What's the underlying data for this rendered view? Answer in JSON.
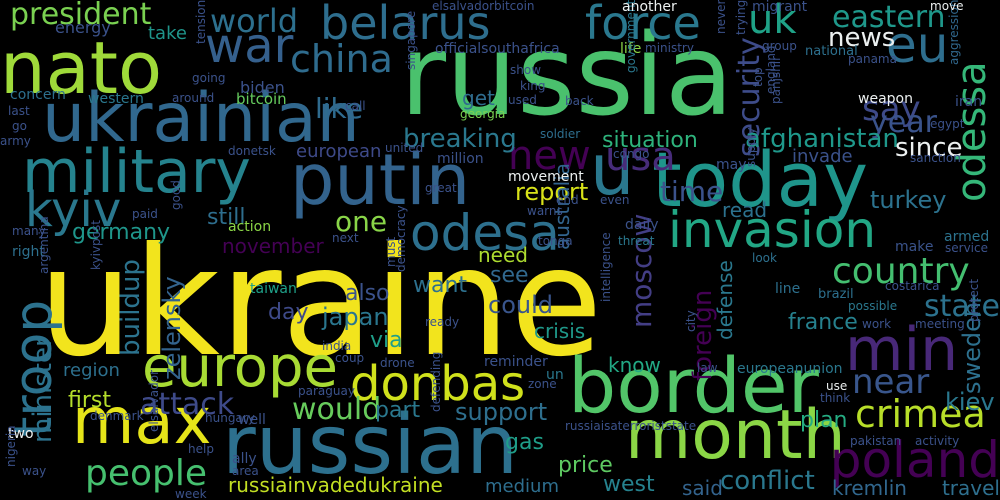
{
  "wordcloud": {
    "background": "#000000",
    "palette": {
      "yellow": "#f0e31c",
      "lime": "#a3da37",
      "green": "#5ec962",
      "teal_green": "#35b779",
      "teal": "#21918c",
      "blue": "#2c728e",
      "indigo": "#3b528b",
      "purple": "#472d7b",
      "dark": "#440154"
    },
    "words": [
      {
        "text": "ukraine",
        "color": "#f2e41d"
      },
      {
        "text": "russia",
        "color": "#4ac16d"
      },
      {
        "text": "border",
        "color": "#52c569"
      },
      {
        "text": "today",
        "color": "#1f958b"
      },
      {
        "text": "russian",
        "color": "#2d708e"
      },
      {
        "text": "nato",
        "color": "#9fda3a"
      },
      {
        "text": "ukrainian",
        "color": "#31688e"
      },
      {
        "text": "putin",
        "color": "#33638d"
      },
      {
        "text": "max",
        "color": "#e5e419"
      },
      {
        "text": "month",
        "color": "#8bd646"
      },
      {
        "text": "min",
        "color": "#482878"
      },
      {
        "text": "u",
        "color": "#2a788e"
      },
      {
        "text": "military",
        "color": "#25838e"
      },
      {
        "text": "europe",
        "color": "#a8db34"
      },
      {
        "text": "belarus",
        "color": "#2e6e8e"
      },
      {
        "text": "force",
        "color": "#2a788e"
      },
      {
        "text": "war",
        "color": "#35608d"
      },
      {
        "text": "odesa",
        "color": "#2d708e"
      },
      {
        "text": "invasion",
        "color": "#22a785"
      },
      {
        "text": "donbas",
        "color": "#d0e11c"
      },
      {
        "text": "troop",
        "color": "#2c728e"
      },
      {
        "text": "poland",
        "color": "#440154"
      },
      {
        "text": "kyiv",
        "color": "#2a788e"
      },
      {
        "text": "crimea",
        "color": "#b8de29"
      },
      {
        "text": "people",
        "color": "#46c06f"
      },
      {
        "text": "eu",
        "color": "#2e6e8e"
      },
      {
        "text": "odessa",
        "color": "#35b779"
      },
      {
        "text": "china",
        "color": "#2f6c8e"
      },
      {
        "text": "uk",
        "color": "#1fa287"
      },
      {
        "text": "country",
        "color": "#44bf70"
      },
      {
        "text": "near",
        "color": "#39568c"
      },
      {
        "text": "usa",
        "color": "#472c7a"
      },
      {
        "text": "new",
        "color": "#440154"
      },
      {
        "text": "state",
        "color": "#2c728e"
      },
      {
        "text": "president",
        "color": "#7ad151"
      },
      {
        "text": "world",
        "color": "#2d708e"
      },
      {
        "text": "eastern",
        "color": "#1f988b"
      },
      {
        "text": "like",
        "color": "#2f6b8e"
      },
      {
        "text": "say",
        "color": "#3e4a89"
      },
      {
        "text": "year",
        "color": "#3a538b"
      },
      {
        "text": "security",
        "color": "#3e4c8a"
      },
      {
        "text": "news",
        "color": "#ecf0f0"
      },
      {
        "text": "would",
        "color": "#67cc5c"
      },
      {
        "text": "attack",
        "color": "#3e4a89"
      },
      {
        "text": "minister",
        "color": "#2c738e"
      },
      {
        "text": "zelensky",
        "color": "#33638d"
      },
      {
        "text": "buildup",
        "color": "#2c738e"
      },
      {
        "text": "one",
        "color": "#89d548"
      },
      {
        "text": "time",
        "color": "#3b528b"
      },
      {
        "text": "breaking",
        "color": "#2a788e"
      },
      {
        "text": "afghanistan",
        "color": "#1f988b"
      },
      {
        "text": "since",
        "color": "#ecf0f0"
      },
      {
        "text": "situation",
        "color": "#2eb37c"
      },
      {
        "text": "report",
        "color": "#d8e219"
      },
      {
        "text": "moscow",
        "color": "#433e85"
      },
      {
        "text": "foreign",
        "color": "#440154"
      },
      {
        "text": "conflict",
        "color": "#2a788e"
      },
      {
        "text": "support",
        "color": "#2e6f8e"
      },
      {
        "text": "kremlin",
        "color": "#31678e"
      },
      {
        "text": "sweden",
        "color": "#2d708e"
      },
      {
        "text": "kiev",
        "color": "#2a788e"
      },
      {
        "text": "turkey",
        "color": "#2c728e"
      },
      {
        "text": "france",
        "color": "#26818e"
      },
      {
        "text": "japan",
        "color": "#2a768e"
      },
      {
        "text": "day",
        "color": "#3e4a89"
      },
      {
        "text": "could",
        "color": "#39558c"
      },
      {
        "text": "see",
        "color": "#31688e"
      },
      {
        "text": "also",
        "color": "#3b528b"
      },
      {
        "text": "want",
        "color": "#2d708e"
      },
      {
        "text": "via",
        "color": "#1f9e89"
      },
      {
        "text": "still",
        "color": "#2e6e8e"
      },
      {
        "text": "germany",
        "color": "#1f968b"
      },
      {
        "text": "november",
        "color": "#440154"
      },
      {
        "text": "first",
        "color": "#b5de2b"
      },
      {
        "text": "part",
        "color": "#2a788e"
      },
      {
        "text": "plan",
        "color": "#25ac82"
      },
      {
        "text": "gas",
        "color": "#1f9e89"
      },
      {
        "text": "price",
        "color": "#5ec962"
      },
      {
        "text": "west",
        "color": "#26828e"
      },
      {
        "text": "said",
        "color": "#33638d"
      },
      {
        "text": "russiainvadedukraine",
        "color": "#c2df23"
      },
      {
        "text": "australia",
        "color": "#32648e"
      },
      {
        "text": "need",
        "color": "#addc30"
      },
      {
        "text": "crisis",
        "color": "#1f998a"
      },
      {
        "text": "defense",
        "color": "#2a788e"
      },
      {
        "text": "travel",
        "color": "#2e6f8e"
      },
      {
        "text": "read",
        "color": "#2c718e"
      },
      {
        "text": "invade",
        "color": "#3b528b"
      },
      {
        "text": "get",
        "color": "#2f6c8e"
      },
      {
        "text": "know",
        "color": "#22a884"
      },
      {
        "text": "medium",
        "color": "#2e6e8e"
      },
      {
        "text": "region",
        "color": "#2d708e"
      },
      {
        "text": "european",
        "color": "#3e4a89"
      },
      {
        "text": "take",
        "color": "#1f958b"
      },
      {
        "text": "energy",
        "color": "#3b528b"
      },
      {
        "text": "biden",
        "color": "#3b528b"
      },
      {
        "text": "bitcoin",
        "color": "#65cb5e"
      },
      {
        "text": "western",
        "color": "#2a788e"
      },
      {
        "text": "concern",
        "color": "#2d708e"
      },
      {
        "text": "last",
        "color": "#3b528b"
      },
      {
        "text": "action",
        "color": "#8bd646"
      },
      {
        "text": "taiwan",
        "color": "#1fa088"
      },
      {
        "text": "armed",
        "color": "#2c738e"
      },
      {
        "text": "make",
        "color": "#3a538b"
      },
      {
        "text": "service",
        "color": "#3b528b"
      },
      {
        "text": "weapon",
        "color": "#ecf0f0"
      },
      {
        "text": "iran",
        "color": "#3b528b"
      },
      {
        "text": "aggression",
        "color": "#31688e"
      },
      {
        "text": "national",
        "color": "#2d708e"
      },
      {
        "text": "group",
        "color": "#3b528b"
      },
      {
        "text": "life",
        "color": "#8bd646"
      },
      {
        "text": "ministry",
        "color": "#3b528b"
      },
      {
        "text": "government",
        "color": "#2a788e"
      },
      {
        "text": "back",
        "color": "#3b528b"
      },
      {
        "text": "soldier",
        "color": "#2e6e8e"
      },
      {
        "text": "georgia",
        "color": "#7ad151"
      },
      {
        "text": "officialsouthafrica",
        "color": "#3b528b"
      },
      {
        "text": "elsalvadorbitcoin",
        "color": "#3b528b"
      },
      {
        "text": "another",
        "color": "#ecf0f0"
      },
      {
        "text": "migrant",
        "color": "#3b528b"
      },
      {
        "text": "move",
        "color": "#ecf0f0"
      },
      {
        "text": "panama",
        "color": "#3b528b"
      },
      {
        "text": "egypt",
        "color": "#3b528b"
      },
      {
        "text": "sanction",
        "color": "#3b528b"
      },
      {
        "text": "may",
        "color": "#3b528b"
      },
      {
        "text": "supply",
        "color": "#3b528b"
      },
      {
        "text": "threat",
        "color": "#2a788e"
      },
      {
        "text": "look",
        "color": "#2d708e"
      },
      {
        "text": "line",
        "color": "#2d708e"
      },
      {
        "text": "brazil",
        "color": "#2d708e"
      },
      {
        "text": "costarica",
        "color": "#3b528b"
      },
      {
        "text": "possible",
        "color": "#2a788e"
      },
      {
        "text": "work",
        "color": "#3b528b"
      },
      {
        "text": "meeting",
        "color": "#3b528b"
      },
      {
        "text": "protect",
        "color": "#3b528b"
      },
      {
        "text": "use",
        "color": "#ecf0f0"
      },
      {
        "text": "think",
        "color": "#3b528b"
      },
      {
        "text": "pakistan",
        "color": "#3b528b"
      },
      {
        "text": "activity",
        "color": "#3b528b"
      },
      {
        "text": "europeanunion",
        "color": "#2a788e"
      },
      {
        "text": "russiaisaterroriststate",
        "color": "#3b528b"
      },
      {
        "text": "intelligence",
        "color": "#3b528b"
      },
      {
        "text": "well",
        "color": "#3b528b"
      },
      {
        "text": "hungary",
        "color": "#3b528b"
      },
      {
        "text": "ally",
        "color": "#3b528b"
      },
      {
        "text": "area",
        "color": "#3b528b"
      },
      {
        "text": "help",
        "color": "#3b528b"
      },
      {
        "text": "week",
        "color": "#3b528b"
      },
      {
        "text": "two",
        "color": "#ecf0f0"
      },
      {
        "text": "way",
        "color": "#3b528b"
      },
      {
        "text": "denmark",
        "color": "#3b528b"
      },
      {
        "text": "right",
        "color": "#2d708e"
      },
      {
        "text": "many",
        "color": "#3b528b"
      },
      {
        "text": "argentina",
        "color": "#3b528b"
      },
      {
        "text": "kyivpost",
        "color": "#3b528b"
      },
      {
        "text": "elsalvador",
        "color": "#3b528b"
      },
      {
        "text": "paid",
        "color": "#3b528b"
      },
      {
        "text": "good",
        "color": "#3b528b"
      },
      {
        "text": "next",
        "color": "#3b528b"
      },
      {
        "text": "call",
        "color": "#3b528b"
      },
      {
        "text": "india",
        "color": "#3b528b"
      },
      {
        "text": "coup",
        "color": "#3b528b"
      },
      {
        "text": "paraguay",
        "color": "#3b528b"
      },
      {
        "text": "drone",
        "color": "#3b528b"
      },
      {
        "text": "reminder",
        "color": "#3b528b"
      },
      {
        "text": "zone",
        "color": "#3b528b"
      },
      {
        "text": "un",
        "color": "#2a788e"
      },
      {
        "text": "congo",
        "color": "#3b528b"
      },
      {
        "text": "united",
        "color": "#3b528b"
      },
      {
        "text": "movement",
        "color": "#ecf0f0"
      },
      {
        "text": "million",
        "color": "#3b528b"
      },
      {
        "text": "warns",
        "color": "#3b528b"
      },
      {
        "text": "end",
        "color": "#3b528b"
      },
      {
        "text": "even",
        "color": "#3b528b"
      },
      {
        "text": "great",
        "color": "#3b528b"
      },
      {
        "text": "daily",
        "color": "#3b528b"
      },
      {
        "text": "must",
        "color": "#3b528b"
      },
      {
        "text": "democracy",
        "color": "#3b528b"
      },
      {
        "text": "tonga",
        "color": "#3b528b"
      },
      {
        "text": "city",
        "color": "#3b528b"
      },
      {
        "text": "ready",
        "color": "#3b528b"
      },
      {
        "text": "law",
        "color": "#3b528b"
      },
      {
        "text": "defending",
        "color": "#3b528b"
      },
      {
        "text": "donetsk",
        "color": "#3b528b"
      },
      {
        "text": "army",
        "color": "#3b528b"
      },
      {
        "text": "going",
        "color": "#3b528b"
      },
      {
        "text": "around",
        "color": "#3b528b"
      },
      {
        "text": "singapore",
        "color": "#3b528b"
      },
      {
        "text": "show",
        "color": "#3b528b"
      },
      {
        "text": "king",
        "color": "#3b528b"
      },
      {
        "text": "used",
        "color": "#3b528b"
      },
      {
        "text": "tension",
        "color": "#3b528b"
      },
      {
        "text": "top",
        "color": "#3b528b"
      },
      {
        "text": "england",
        "color": "#3b528b"
      },
      {
        "text": "panjshir",
        "color": "#3b528b"
      },
      {
        "text": "never",
        "color": "#3b528b"
      },
      {
        "text": "trying",
        "color": "#3b528b"
      },
      {
        "text": "nigeria",
        "color": "#3b528b"
      },
      {
        "text": "go",
        "color": "#3b528b"
      }
    ]
  }
}
